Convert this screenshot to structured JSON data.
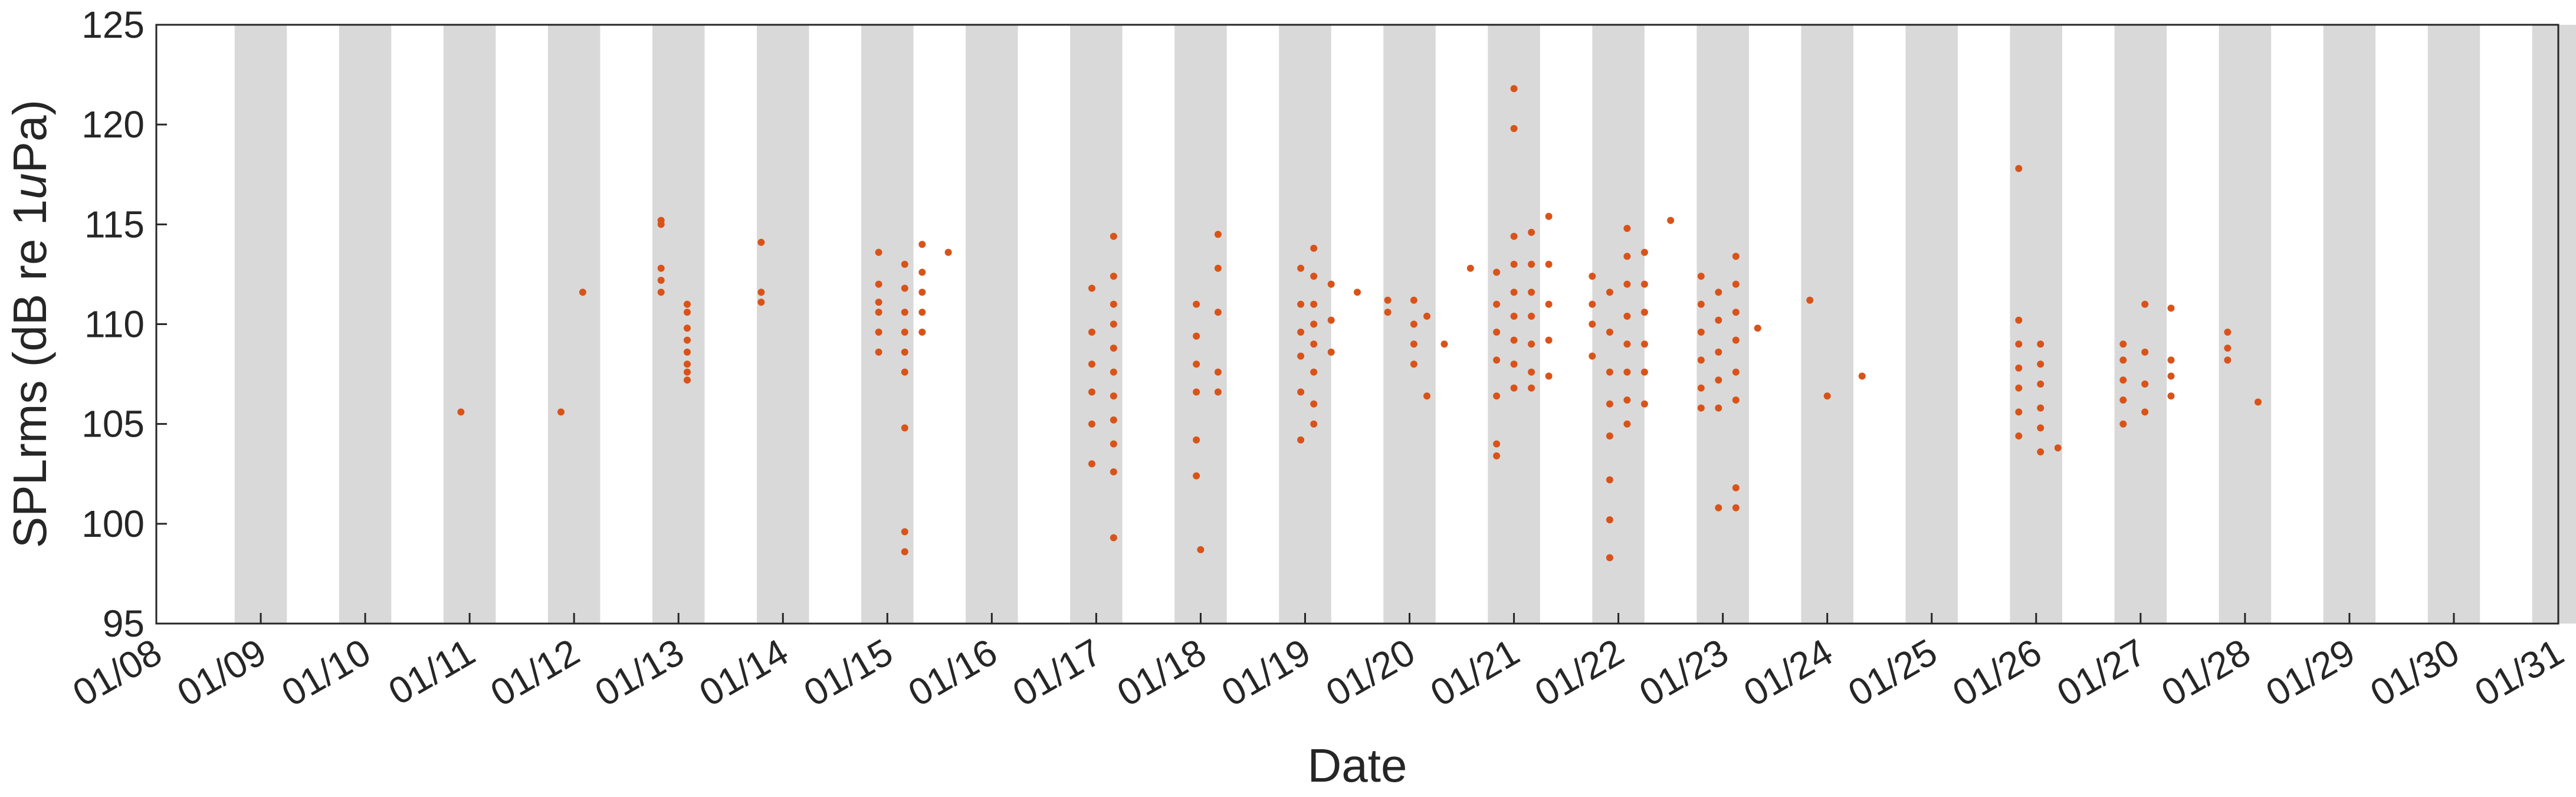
{
  "chart_data": {
    "type": "scatter",
    "title": "",
    "xlabel": "Date",
    "ylabel_parts": [
      "SPLrms (dB re 1",
      "u",
      "Pa)"
    ],
    "xlim": [
      "01/08",
      "01/31"
    ],
    "x_tick_labels": [
      "01/08",
      "01/09",
      "01/10",
      "01/11",
      "01/12",
      "01/13",
      "01/14",
      "01/15",
      "01/16",
      "01/17",
      "01/18",
      "01/19",
      "01/20",
      "01/21",
      "01/22",
      "01/23",
      "01/24",
      "01/25",
      "01/26",
      "01/27",
      "01/28",
      "01/29",
      "01/30",
      "01/31"
    ],
    "ylim": [
      95,
      125
    ],
    "y_ticks": [
      95,
      100,
      105,
      110,
      115,
      120,
      125
    ],
    "grid": false,
    "night_shading": {
      "color": "#d9d9d9",
      "bands": [
        [
          "01/08 18:00",
          "01/09 06:00"
        ],
        [
          "01/09 18:00",
          "01/10 06:00"
        ],
        [
          "01/10 18:00",
          "01/11 06:00"
        ],
        [
          "01/11 18:00",
          "01/12 06:00"
        ],
        [
          "01/12 18:00",
          "01/13 06:00"
        ],
        [
          "01/13 18:00",
          "01/14 06:00"
        ],
        [
          "01/14 18:00",
          "01/15 06:00"
        ],
        [
          "01/15 18:00",
          "01/16 06:00"
        ],
        [
          "01/16 18:00",
          "01/17 06:00"
        ],
        [
          "01/17 18:00",
          "01/18 06:00"
        ],
        [
          "01/18 18:00",
          "01/19 06:00"
        ],
        [
          "01/19 18:00",
          "01/20 06:00"
        ],
        [
          "01/20 18:00",
          "01/21 06:00"
        ],
        [
          "01/21 18:00",
          "01/22 06:00"
        ],
        [
          "01/22 18:00",
          "01/23 06:00"
        ],
        [
          "01/23 18:00",
          "01/24 06:00"
        ],
        [
          "01/24 18:00",
          "01/25 06:00"
        ],
        [
          "01/25 18:00",
          "01/26 06:00"
        ],
        [
          "01/26 18:00",
          "01/27 06:00"
        ],
        [
          "01/27 18:00",
          "01/28 06:00"
        ],
        [
          "01/28 18:00",
          "01/29 06:00"
        ],
        [
          "01/29 18:00",
          "01/30 06:00"
        ],
        [
          "01/30 18:00",
          "01/31 06:00"
        ]
      ]
    },
    "marker_color": "#d95319",
    "series": [
      {
        "points": [
          [
            "01/10 22:00",
            105.6
          ],
          [
            "01/11 21:00",
            105.6
          ],
          [
            "01/12 02:00",
            111.6
          ],
          [
            "01/12 20:00",
            115.2
          ],
          [
            "01/12 20:00",
            115.0
          ],
          [
            "01/12 20:00",
            112.8
          ],
          [
            "01/12 20:00",
            112.2
          ],
          [
            "01/12 20:00",
            111.6
          ],
          [
            "01/13 02:00",
            111.0
          ],
          [
            "01/13 02:00",
            110.6
          ],
          [
            "01/13 02:00",
            109.8
          ],
          [
            "01/13 02:00",
            109.2
          ],
          [
            "01/13 02:00",
            108.6
          ],
          [
            "01/13 02:00",
            108.0
          ],
          [
            "01/13 02:00",
            107.6
          ],
          [
            "01/13 02:00",
            107.2
          ],
          [
            "01/13 19:00",
            114.1
          ],
          [
            "01/13 19:00",
            111.6
          ],
          [
            "01/13 19:00",
            111.1
          ],
          [
            "01/14 22:00",
            113.6
          ],
          [
            "01/14 22:00",
            112.0
          ],
          [
            "01/14 22:00",
            111.1
          ],
          [
            "01/14 22:00",
            110.6
          ],
          [
            "01/14 22:00",
            109.6
          ],
          [
            "01/14 22:00",
            108.6
          ],
          [
            "01/15 04:00",
            113.0
          ],
          [
            "01/15 04:00",
            111.8
          ],
          [
            "01/15 04:00",
            110.6
          ],
          [
            "01/15 04:00",
            109.6
          ],
          [
            "01/15 04:00",
            108.6
          ],
          [
            "01/15 04:00",
            107.6
          ],
          [
            "01/15 04:00",
            104.8
          ],
          [
            "01/15 04:00",
            99.6
          ],
          [
            "01/15 04:00",
            98.6
          ],
          [
            "01/15 08:00",
            114.0
          ],
          [
            "01/15 08:00",
            112.6
          ],
          [
            "01/15 08:00",
            111.6
          ],
          [
            "01/15 08:00",
            110.6
          ],
          [
            "01/15 08:00",
            109.6
          ],
          [
            "01/15 14:00",
            113.6
          ],
          [
            "01/16 23:00",
            111.8
          ],
          [
            "01/16 23:00",
            109.6
          ],
          [
            "01/16 23:00",
            108.0
          ],
          [
            "01/16 23:00",
            106.6
          ],
          [
            "01/16 23:00",
            105.0
          ],
          [
            "01/16 23:00",
            103.0
          ],
          [
            "01/17 04:00",
            114.4
          ],
          [
            "01/17 04:00",
            112.4
          ],
          [
            "01/17 04:00",
            111.0
          ],
          [
            "01/17 04:00",
            110.0
          ],
          [
            "01/17 04:00",
            108.8
          ],
          [
            "01/17 04:00",
            107.6
          ],
          [
            "01/17 04:00",
            106.4
          ],
          [
            "01/17 04:00",
            105.2
          ],
          [
            "01/17 04:00",
            104.0
          ],
          [
            "01/17 04:00",
            102.6
          ],
          [
            "01/17 04:00",
            99.3
          ],
          [
            "01/17 23:00",
            111.0
          ],
          [
            "01/17 23:00",
            109.4
          ],
          [
            "01/17 23:00",
            108.0
          ],
          [
            "01/17 23:00",
            106.6
          ],
          [
            "01/17 23:00",
            104.2
          ],
          [
            "01/17 23:00",
            102.4
          ],
          [
            "01/18 00:00",
            98.7
          ],
          [
            "01/18 04:00",
            114.5
          ],
          [
            "01/18 04:00",
            112.8
          ],
          [
            "01/18 04:00",
            110.6
          ],
          [
            "01/18 04:00",
            107.6
          ],
          [
            "01/18 04:00",
            106.6
          ],
          [
            "01/18 23:00",
            112.8
          ],
          [
            "01/18 23:00",
            111.0
          ],
          [
            "01/18 23:00",
            109.6
          ],
          [
            "01/18 23:00",
            108.4
          ],
          [
            "01/18 23:00",
            106.6
          ],
          [
            "01/18 23:00",
            104.2
          ],
          [
            "01/19 02:00",
            113.8
          ],
          [
            "01/19 02:00",
            112.4
          ],
          [
            "01/19 02:00",
            111.0
          ],
          [
            "01/19 02:00",
            110.0
          ],
          [
            "01/19 02:00",
            109.0
          ],
          [
            "01/19 02:00",
            107.6
          ],
          [
            "01/19 02:00",
            106.0
          ],
          [
            "01/19 02:00",
            105.0
          ],
          [
            "01/19 06:00",
            112.0
          ],
          [
            "01/19 06:00",
            110.2
          ],
          [
            "01/19 06:00",
            108.6
          ],
          [
            "01/19 12:00",
            111.6
          ],
          [
            "01/19 19:00",
            111.2
          ],
          [
            "01/19 19:00",
            110.6
          ],
          [
            "01/20 01:00",
            111.2
          ],
          [
            "01/20 01:00",
            110.0
          ],
          [
            "01/20 01:00",
            109.0
          ],
          [
            "01/20 01:00",
            108.0
          ],
          [
            "01/20 04:00",
            110.4
          ],
          [
            "01/20 04:00",
            106.4
          ],
          [
            "01/20 08:00",
            109.0
          ],
          [
            "01/20 14:00",
            112.8
          ],
          [
            "01/20 20:00",
            112.6
          ],
          [
            "01/20 20:00",
            111.0
          ],
          [
            "01/20 20:00",
            109.6
          ],
          [
            "01/20 20:00",
            108.2
          ],
          [
            "01/20 20:00",
            106.4
          ],
          [
            "01/20 20:00",
            104.0
          ],
          [
            "01/20 20:00",
            103.4
          ],
          [
            "01/21 00:00",
            121.8
          ],
          [
            "01/21 00:00",
            119.8
          ],
          [
            "01/21 00:00",
            114.4
          ],
          [
            "01/21 00:00",
            113.0
          ],
          [
            "01/21 00:00",
            111.6
          ],
          [
            "01/21 00:00",
            110.4
          ],
          [
            "01/21 00:00",
            109.2
          ],
          [
            "01/21 00:00",
            108.0
          ],
          [
            "01/21 00:00",
            106.8
          ],
          [
            "01/21 04:00",
            114.6
          ],
          [
            "01/21 04:00",
            113.0
          ],
          [
            "01/21 04:00",
            111.6
          ],
          [
            "01/21 04:00",
            110.4
          ],
          [
            "01/21 04:00",
            109.0
          ],
          [
            "01/21 04:00",
            107.6
          ],
          [
            "01/21 04:00",
            106.8
          ],
          [
            "01/21 08:00",
            115.4
          ],
          [
            "01/21 08:00",
            113.0
          ],
          [
            "01/21 08:00",
            111.0
          ],
          [
            "01/21 08:00",
            109.2
          ],
          [
            "01/21 08:00",
            107.4
          ],
          [
            "01/21 18:00",
            112.4
          ],
          [
            "01/21 18:00",
            111.0
          ],
          [
            "01/21 18:00",
            110.0
          ],
          [
            "01/21 18:00",
            108.4
          ],
          [
            "01/21 22:00",
            111.6
          ],
          [
            "01/21 22:00",
            109.6
          ],
          [
            "01/21 22:00",
            107.6
          ],
          [
            "01/21 22:00",
            106.0
          ],
          [
            "01/21 22:00",
            104.4
          ],
          [
            "01/21 22:00",
            102.2
          ],
          [
            "01/21 22:00",
            100.2
          ],
          [
            "01/21 22:00",
            98.3
          ],
          [
            "01/22 02:00",
            114.8
          ],
          [
            "01/22 02:00",
            113.4
          ],
          [
            "01/22 02:00",
            112.0
          ],
          [
            "01/22 02:00",
            110.4
          ],
          [
            "01/22 02:00",
            109.0
          ],
          [
            "01/22 02:00",
            107.6
          ],
          [
            "01/22 02:00",
            106.2
          ],
          [
            "01/22 02:00",
            105.0
          ],
          [
            "01/22 06:00",
            113.6
          ],
          [
            "01/22 06:00",
            112.0
          ],
          [
            "01/22 06:00",
            110.6
          ],
          [
            "01/22 06:00",
            109.0
          ],
          [
            "01/22 06:00",
            107.6
          ],
          [
            "01/22 06:00",
            106.0
          ],
          [
            "01/22 12:00",
            115.2
          ],
          [
            "01/22 19:00",
            112.4
          ],
          [
            "01/22 19:00",
            111.0
          ],
          [
            "01/22 19:00",
            109.6
          ],
          [
            "01/22 19:00",
            108.2
          ],
          [
            "01/22 19:00",
            106.8
          ],
          [
            "01/22 19:00",
            105.8
          ],
          [
            "01/22 23:00",
            111.6
          ],
          [
            "01/22 23:00",
            110.2
          ],
          [
            "01/22 23:00",
            108.6
          ],
          [
            "01/22 23:00",
            107.2
          ],
          [
            "01/22 23:00",
            105.8
          ],
          [
            "01/22 23:00",
            100.8
          ],
          [
            "01/23 03:00",
            113.4
          ],
          [
            "01/23 03:00",
            112.0
          ],
          [
            "01/23 03:00",
            110.6
          ],
          [
            "01/23 03:00",
            109.2
          ],
          [
            "01/23 03:00",
            107.6
          ],
          [
            "01/23 03:00",
            106.2
          ],
          [
            "01/23 03:00",
            101.8
          ],
          [
            "01/23 03:00",
            100.8
          ],
          [
            "01/23 08:00",
            109.8
          ],
          [
            "01/23 20:00",
            111.2
          ],
          [
            "01/24 00:00",
            106.4
          ],
          [
            "01/24 08:00",
            107.4
          ],
          [
            "01/25 20:00",
            117.8
          ],
          [
            "01/25 20:00",
            110.2
          ],
          [
            "01/25 20:00",
            109.0
          ],
          [
            "01/25 20:00",
            107.8
          ],
          [
            "01/25 20:00",
            106.8
          ],
          [
            "01/25 20:00",
            105.6
          ],
          [
            "01/25 20:00",
            104.4
          ],
          [
            "01/26 01:00",
            109.0
          ],
          [
            "01/26 01:00",
            108.0
          ],
          [
            "01/26 01:00",
            107.0
          ],
          [
            "01/26 01:00",
            105.8
          ],
          [
            "01/26 01:00",
            104.8
          ],
          [
            "01/26 01:00",
            103.6
          ],
          [
            "01/26 05:00",
            103.8
          ],
          [
            "01/26 20:00",
            109.0
          ],
          [
            "01/26 20:00",
            108.2
          ],
          [
            "01/26 20:00",
            107.2
          ],
          [
            "01/26 20:00",
            106.2
          ],
          [
            "01/26 20:00",
            105.0
          ],
          [
            "01/27 01:00",
            111.0
          ],
          [
            "01/27 01:00",
            108.6
          ],
          [
            "01/27 01:00",
            107.0
          ],
          [
            "01/27 01:00",
            105.6
          ],
          [
            "01/27 07:00",
            110.8
          ],
          [
            "01/27 07:00",
            108.2
          ],
          [
            "01/27 07:00",
            107.4
          ],
          [
            "01/27 07:00",
            106.4
          ],
          [
            "01/27 20:00",
            109.6
          ],
          [
            "01/27 20:00",
            108.8
          ],
          [
            "01/27 20:00",
            108.2
          ],
          [
            "01/28 03:00",
            106.1
          ]
        ]
      }
    ]
  }
}
